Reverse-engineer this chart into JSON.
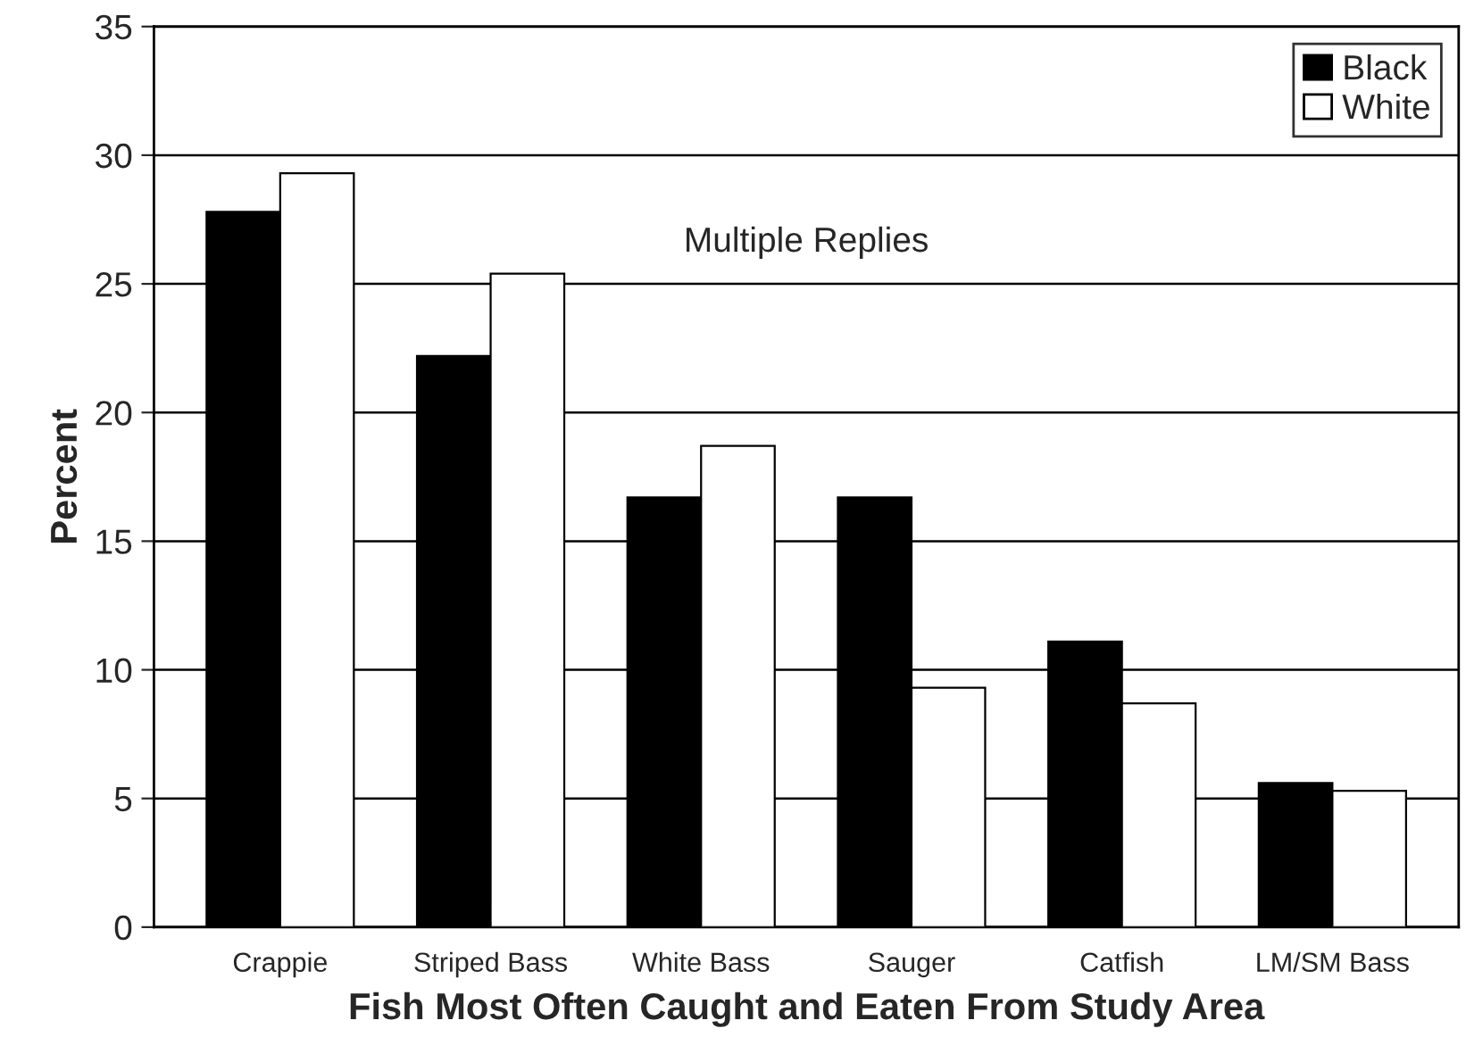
{
  "chart_data": {
    "type": "bar",
    "xlabel": "Fish Most Often Caught and Eaten From Study Area",
    "ylabel": "Percent",
    "annotations": [
      "Multiple Replies"
    ],
    "categories": [
      "Crappie",
      "Striped Bass",
      "White Bass",
      "Sauger",
      "Catfish",
      "LM/SM Bass"
    ],
    "series": [
      {
        "name": "Black",
        "color": "#000000",
        "values": [
          27.8,
          22.2,
          16.7,
          16.7,
          11.1,
          5.6
        ]
      },
      {
        "name": "White",
        "color": "#ffffff",
        "values": [
          29.3,
          25.4,
          18.7,
          9.3,
          8.7,
          5.3
        ]
      }
    ],
    "ylim": [
      0,
      35
    ],
    "yticks": [
      0,
      5,
      10,
      15,
      20,
      25,
      30,
      35
    ],
    "grid": "y",
    "legend": "top right"
  }
}
